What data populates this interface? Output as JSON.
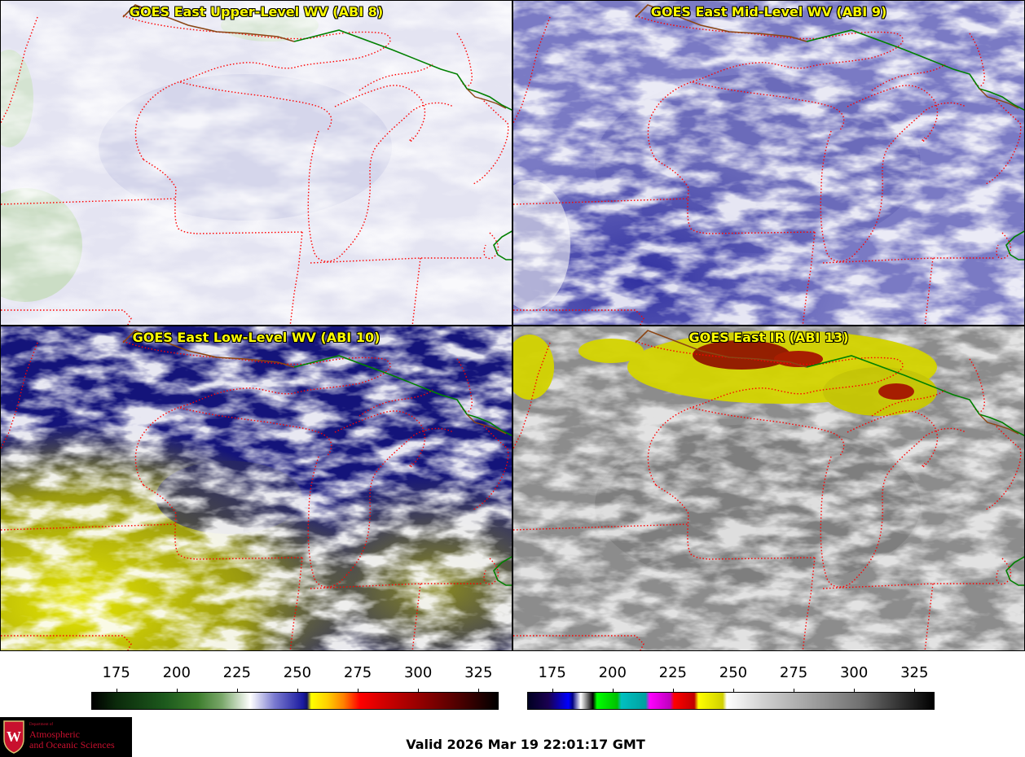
{
  "panels": [
    {
      "title": "GOES East Upper-Level WV (ABI 8)",
      "product": "upper-wv"
    },
    {
      "title": "GOES East Mid-Level WV (ABI 9)",
      "product": "mid-wv"
    },
    {
      "title": "GOES East Low-Level WV (ABI 10)",
      "product": "low-wv"
    },
    {
      "title": "GOES East IR (ABI 13)",
      "product": "ir"
    }
  ],
  "colorbars": {
    "left": {
      "ticks": [
        "175",
        "200",
        "225",
        "250",
        "275",
        "300",
        "325"
      ],
      "range": [
        165,
        333
      ]
    },
    "right": {
      "ticks": [
        "175",
        "200",
        "225",
        "250",
        "275",
        "300",
        "325"
      ],
      "range": [
        165,
        333
      ]
    }
  },
  "footer": {
    "valid_time": "Valid 2026 Mar 19 22:01:17 GMT"
  },
  "logo": {
    "department": "Department of",
    "line1": "Atmospheric",
    "line2": "and Oceanic Sciences",
    "crest_letter": "W"
  },
  "colors": {
    "title_text": "#ffff00",
    "state_borders": "#ff0000",
    "international_border": "#008000",
    "coastline": "#8b4513"
  }
}
